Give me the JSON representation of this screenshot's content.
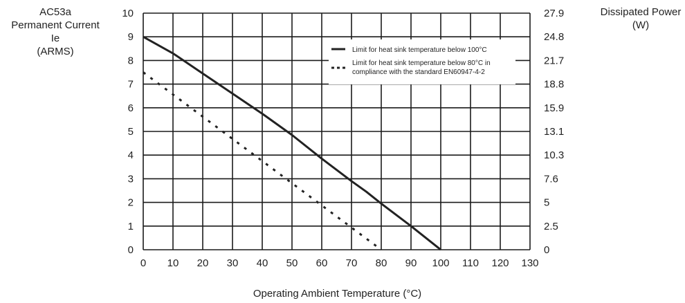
{
  "chart_data": {
    "type": "line",
    "xlabel": "Operating Ambient Temperature (°C)",
    "ylabel_left_lines": [
      "AC53a",
      "Permanent Current",
      "Ie",
      "(ARMS)"
    ],
    "ylabel_right_lines": [
      "Dissipated Power",
      "(W)"
    ],
    "xlim": [
      0,
      130
    ],
    "ylim": [
      0,
      10
    ],
    "x_ticks": [
      "0",
      "10",
      "20",
      "30",
      "40",
      "50",
      "60",
      "70",
      "80",
      "90",
      "100",
      "110",
      "120",
      "130"
    ],
    "y_ticks_left": [
      "0",
      "1",
      "2",
      "3",
      "4",
      "5",
      "6",
      "7",
      "8",
      "9",
      "10"
    ],
    "y_ticks_right": [
      "0",
      "2.5",
      "5",
      "7.6",
      "10.3",
      "13.1",
      "15.9",
      "18.8",
      "21.7",
      "24.8",
      "27.9"
    ],
    "grid": true,
    "legend_position": "top-right",
    "series": [
      {
        "name": "Limit for heat sink temperature below 100°C",
        "style": "solid",
        "color": "#222222",
        "x": [
          0,
          10,
          20,
          30,
          40,
          50,
          60,
          70,
          75,
          80,
          90,
          100
        ],
        "y": [
          9.0,
          8.3,
          7.45,
          6.6,
          5.75,
          4.85,
          3.85,
          2.9,
          2.45,
          1.95,
          1.0,
          0.0
        ]
      },
      {
        "name": "Limit for heat sink temperature below 80°C in compliance with the standard EN60947-4-2",
        "legend_lines": [
          "Limit for heat sink temperature below 80°C in",
          "compliance with the standard EN60947-4-2"
        ],
        "style": "dashed",
        "color": "#222222",
        "x": [
          0,
          80
        ],
        "y": [
          7.5,
          0.0
        ]
      }
    ]
  }
}
